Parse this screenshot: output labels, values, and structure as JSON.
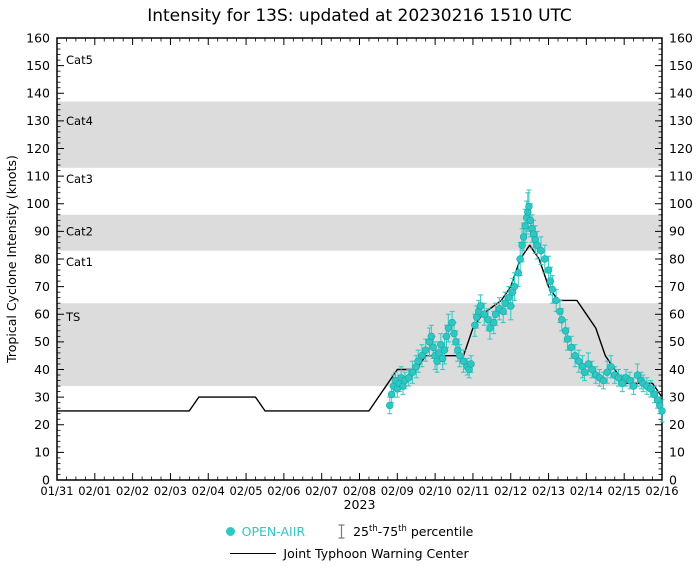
{
  "colors": {
    "accent": "#2fc7c3",
    "accent_edge": "#17a9a5",
    "band": "#dcdcdc",
    "line": "#000000",
    "errorbar_glyph": "#7a7a7a"
  },
  "legend": {
    "open_aiir": "OPEN-AIIR",
    "pct_25": "25",
    "sup1": "th",
    "pct_75": "-75",
    "sup2": "th",
    "pct_rest": " percentile",
    "jtwc": "Joint Typhoon Warning Center"
  },
  "chart_data": {
    "type": "scatter+line",
    "title": "Intensity for 13S: updated at 20230216 1510 UTC",
    "ylabel": "Tropical Cyclone Intensity (knots)",
    "xlabel": "2023",
    "ylim": [
      0,
      160
    ],
    "xlim": [
      0,
      16
    ],
    "y_ticks": [
      0,
      10,
      20,
      30,
      40,
      50,
      60,
      70,
      80,
      90,
      100,
      110,
      120,
      130,
      140,
      150,
      160
    ],
    "y_minor_step": 2,
    "x_minor_step": 0.25,
    "x_tick_labels": [
      "01/31",
      "02/01",
      "02/02",
      "02/03",
      "02/04",
      "02/05",
      "02/06",
      "02/07",
      "02/08",
      "02/09",
      "02/10",
      "02/11",
      "02/12",
      "02/13",
      "02/14",
      "02/15",
      "02/16"
    ],
    "grid": false,
    "legend_position": "bottom",
    "bands": [
      {
        "label": "TS",
        "from": 34,
        "to": 64,
        "shaded": true,
        "label_y": 59
      },
      {
        "label": "Cat1",
        "from": 64,
        "to": 83,
        "shaded": false,
        "label_y": 79
      },
      {
        "label": "Cat2",
        "from": 83,
        "to": 96,
        "shaded": true,
        "label_y": 90
      },
      {
        "label": "Cat3",
        "from": 96,
        "to": 113,
        "shaded": false,
        "label_y": 109
      },
      {
        "label": "Cat4",
        "from": 113,
        "to": 137,
        "shaded": true,
        "label_y": 130
      },
      {
        "label": "Cat5",
        "from": 137,
        "to": 160,
        "shaded": false,
        "label_y": 152
      }
    ],
    "series": [
      {
        "name": "Joint Typhoon Warning Center",
        "type": "line",
        "points": [
          [
            0,
            25
          ],
          [
            3.5,
            25
          ],
          [
            3.75,
            30
          ],
          [
            5.25,
            30
          ],
          [
            5.5,
            25
          ],
          [
            8.25,
            25
          ],
          [
            8.5,
            30
          ],
          [
            8.75,
            35
          ],
          [
            9,
            40
          ],
          [
            9.5,
            40
          ],
          [
            9.75,
            45
          ],
          [
            10.75,
            45
          ],
          [
            11,
            55
          ],
          [
            11.25,
            60
          ],
          [
            11.75,
            65
          ],
          [
            12,
            70
          ],
          [
            12.25,
            80
          ],
          [
            12.5,
            85
          ],
          [
            12.75,
            80
          ],
          [
            13,
            70
          ],
          [
            13.25,
            65
          ],
          [
            13.75,
            65
          ],
          [
            14,
            60
          ],
          [
            14.25,
            55
          ],
          [
            14.5,
            45
          ],
          [
            14.75,
            40
          ],
          [
            15,
            35
          ],
          [
            15.75,
            35
          ],
          [
            16,
            30
          ]
        ]
      },
      {
        "name": "OPEN-AIIR",
        "type": "scatter_errorbar",
        "points": [
          [
            8.8,
            27,
            3
          ],
          [
            8.85,
            31,
            3
          ],
          [
            8.9,
            34,
            4
          ],
          [
            8.95,
            36,
            3
          ],
          [
            9.0,
            33,
            3
          ],
          [
            9.05,
            35,
            3
          ],
          [
            9.1,
            37,
            4
          ],
          [
            9.15,
            34,
            3
          ],
          [
            9.2,
            36,
            3
          ],
          [
            9.3,
            37,
            3
          ],
          [
            9.4,
            39,
            4
          ],
          [
            9.5,
            41,
            4
          ],
          [
            9.55,
            43,
            4
          ],
          [
            9.65,
            45,
            4
          ],
          [
            9.75,
            47,
            4
          ],
          [
            9.85,
            50,
            5
          ],
          [
            9.9,
            52,
            4
          ],
          [
            9.95,
            48,
            4
          ],
          [
            10.0,
            45,
            5
          ],
          [
            10.05,
            43,
            4
          ],
          [
            10.1,
            46,
            4
          ],
          [
            10.15,
            49,
            4
          ],
          [
            10.2,
            44,
            4
          ],
          [
            10.25,
            47,
            5
          ],
          [
            10.3,
            52,
            4
          ],
          [
            10.35,
            55,
            5
          ],
          [
            10.45,
            57,
            4
          ],
          [
            10.5,
            53,
            4
          ],
          [
            10.55,
            50,
            4
          ],
          [
            10.6,
            47,
            4
          ],
          [
            10.65,
            45,
            4
          ],
          [
            10.75,
            43,
            4
          ],
          [
            10.85,
            41,
            3
          ],
          [
            10.9,
            40,
            3
          ],
          [
            10.95,
            42,
            3
          ],
          [
            11.05,
            56,
            4
          ],
          [
            11.1,
            59,
            4
          ],
          [
            11.15,
            61,
            4
          ],
          [
            11.2,
            63,
            4
          ],
          [
            11.3,
            60,
            4
          ],
          [
            11.4,
            58,
            4
          ],
          [
            11.45,
            55,
            4
          ],
          [
            11.55,
            57,
            4
          ],
          [
            11.6,
            60,
            4
          ],
          [
            11.7,
            62,
            4
          ],
          [
            11.8,
            61,
            4
          ],
          [
            11.85,
            64,
            4
          ],
          [
            11.95,
            66,
            4
          ],
          [
            12.0,
            63,
            5
          ],
          [
            12.05,
            68,
            5
          ],
          [
            12.1,
            70,
            5
          ],
          [
            12.2,
            75,
            5
          ],
          [
            12.25,
            80,
            6
          ],
          [
            12.3,
            85,
            6
          ],
          [
            12.34,
            88,
            5
          ],
          [
            12.38,
            92,
            6
          ],
          [
            12.42,
            95,
            6
          ],
          [
            12.45,
            97,
            7
          ],
          [
            12.48,
            99,
            6
          ],
          [
            12.52,
            94,
            6
          ],
          [
            12.56,
            91,
            5
          ],
          [
            12.6,
            89,
            5
          ],
          [
            12.65,
            87,
            5
          ],
          [
            12.7,
            85,
            5
          ],
          [
            12.8,
            83,
            5
          ],
          [
            12.9,
            80,
            5
          ],
          [
            13.0,
            76,
            5
          ],
          [
            13.05,
            72,
            5
          ],
          [
            13.1,
            69,
            5
          ],
          [
            13.2,
            65,
            4
          ],
          [
            13.3,
            61,
            4
          ],
          [
            13.35,
            58,
            4
          ],
          [
            13.45,
            54,
            4
          ],
          [
            13.5,
            51,
            4
          ],
          [
            13.6,
            48,
            4
          ],
          [
            13.7,
            45,
            4
          ],
          [
            13.8,
            43,
            4
          ],
          [
            13.9,
            41,
            4
          ],
          [
            13.95,
            39,
            3
          ],
          [
            14.05,
            42,
            4
          ],
          [
            14.15,
            40,
            3
          ],
          [
            14.25,
            38,
            3
          ],
          [
            14.35,
            37,
            3
          ],
          [
            14.45,
            36,
            3
          ],
          [
            14.55,
            39,
            4
          ],
          [
            14.65,
            41,
            4
          ],
          [
            14.75,
            38,
            3
          ],
          [
            14.85,
            37,
            3
          ],
          [
            14.95,
            35,
            3
          ],
          [
            15.05,
            37,
            3
          ],
          [
            15.15,
            36,
            3
          ],
          [
            15.25,
            34,
            3
          ],
          [
            15.35,
            38,
            4
          ],
          [
            15.45,
            36,
            3
          ],
          [
            15.5,
            35,
            3
          ],
          [
            15.6,
            34,
            3
          ],
          [
            15.7,
            33,
            3
          ],
          [
            15.8,
            31,
            3
          ],
          [
            15.88,
            29,
            3
          ],
          [
            15.94,
            27,
            3
          ],
          [
            16.0,
            25,
            4
          ]
        ]
      }
    ]
  }
}
